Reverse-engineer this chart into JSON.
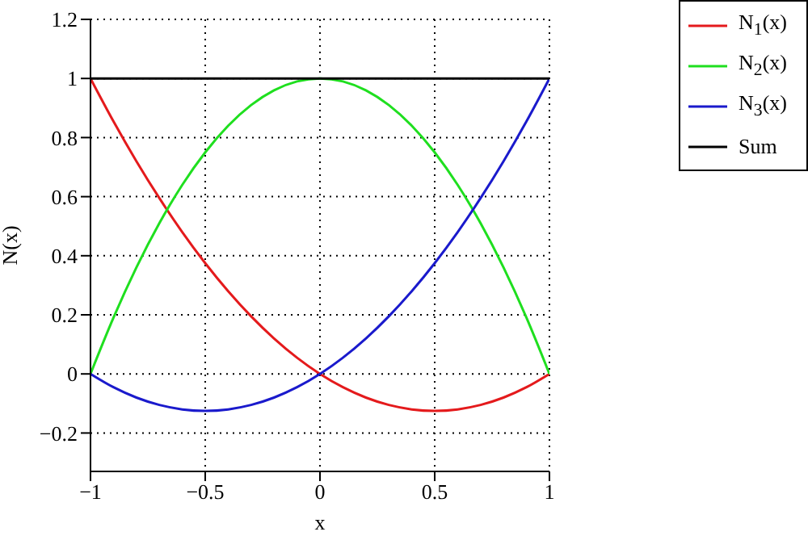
{
  "chart_data": {
    "type": "line",
    "xlabel": "x",
    "ylabel": "N(x)",
    "x": [
      -1,
      -0.9,
      -0.8,
      -0.7,
      -0.6,
      -0.5,
      -0.4,
      -0.3,
      -0.2,
      -0.1,
      0,
      0.1,
      0.2,
      0.3,
      0.4,
      0.5,
      0.6,
      0.7,
      0.8,
      0.9,
      1
    ],
    "series": [
      {
        "name": "N$_{1}$(x)",
        "color": "#e41a1c",
        "values": [
          1,
          0.855,
          0.72,
          0.595,
          0.48,
          0.375,
          0.28,
          0.195,
          0.12,
          0.055,
          0,
          -0.045,
          -0.08,
          -0.105,
          -0.12,
          -0.125,
          -0.12,
          -0.105,
          -0.08,
          -0.045,
          0
        ]
      },
      {
        "name": "N$_{2}$(x)",
        "color": "#1fdf1f",
        "values": [
          0,
          0.19,
          0.36,
          0.51,
          0.64,
          0.75,
          0.84,
          0.91,
          0.96,
          0.99,
          1,
          0.99,
          0.96,
          0.91,
          0.84,
          0.75,
          0.64,
          0.51,
          0.36,
          0.19,
          0
        ]
      },
      {
        "name": "N$_{3}$(x)",
        "color": "#1a1acc",
        "values": [
          0,
          -0.045,
          -0.08,
          -0.105,
          -0.12,
          -0.125,
          -0.12,
          -0.105,
          -0.08,
          -0.045,
          0,
          0.055,
          0.12,
          0.195,
          0.28,
          0.375,
          0.48,
          0.595,
          0.72,
          0.855,
          1
        ]
      },
      {
        "name": "Sum",
        "color": "#000000",
        "values": [
          1,
          1,
          1,
          1,
          1,
          1,
          1,
          1,
          1,
          1,
          1,
          1,
          1,
          1,
          1,
          1,
          1,
          1,
          1,
          1,
          1
        ]
      }
    ],
    "xlim": [
      -1,
      1
    ],
    "xticks": [
      -1,
      -0.5,
      0,
      0.5,
      1
    ],
    "ylim": [
      -0.33,
      1.2
    ],
    "yticks": [
      -0.2,
      0,
      0.2,
      0.4,
      0.6,
      0.8,
      1,
      1.2
    ],
    "grid": true,
    "legend": "top right",
    "marker": "none",
    "line_style": "solid"
  }
}
